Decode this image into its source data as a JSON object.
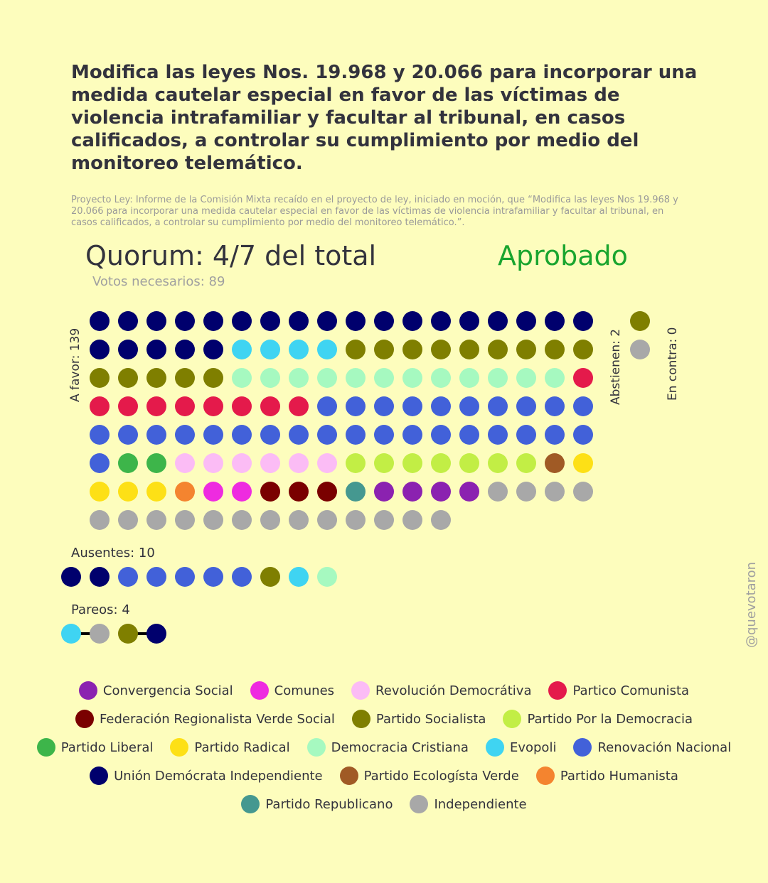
{
  "title": "Modifica las leyes Nos. 19.968 y 20.066 para incorporar una medida cautelar especial en favor de las víctimas de violencia intrafamiliar y facultar al tribunal, en casos calificados, a controlar su cumplimiento por medio del monitoreo telemático.",
  "subtitle": "Proyecto Ley: Informe de la Comisión Mixta recaído en el proyecto de ley, iniciado en moción, que “Modifica las leyes Nos 19.968 y 20.066 para incorporar una medida cautelar especial en favor de las víctimas de violencia intrafamiliar y facultar al tribunal, en casos calificados, a controlar su cumplimiento por medio del monitoreo telemático.”.",
  "quorum": "Quorum: 4/7 del total",
  "result": "Aprobado",
  "needed": "Votos necesarios: 89",
  "labels": {
    "favor": "A favor: 139",
    "abstain": "Abstienen: 2",
    "against": "En contra: 0",
    "absent": "Ausentes: 10",
    "pairs": "Pareos: 4"
  },
  "watermark": "@quevotaron",
  "parties": {
    "CS": {
      "name": "Convergencia Social",
      "color": "#8b22b0"
    },
    "COM": {
      "name": "Comunes",
      "color": "#ee2be0"
    },
    "RD": {
      "name": "Revolución Democrátiva",
      "color": "#fbbcf5"
    },
    "PC": {
      "name": "Partico Comunista",
      "color": "#e41a4b"
    },
    "FRVS": {
      "name": "Federación Regionalista Verde Social",
      "color": "#7a0000"
    },
    "PS": {
      "name": "Partido Socialista",
      "color": "#7f7f00"
    },
    "PPD": {
      "name": "Partido Por la Democracia",
      "color": "#c2ee45"
    },
    "PL": {
      "name": "Partido Liberal",
      "color": "#3db54a"
    },
    "PR": {
      "name": "Partido Radical",
      "color": "#fde016"
    },
    "DC": {
      "name": "Democracia Cristiana",
      "color": "#a6f9c0"
    },
    "EVO": {
      "name": "Evopoli",
      "color": "#3fd4f2"
    },
    "RN": {
      "name": "Renovación Nacional",
      "color": "#4261d9"
    },
    "UDI": {
      "name": "Unión Demócrata Independiente",
      "color": "#00006d"
    },
    "PEV": {
      "name": "Partido Ecologísta Verde",
      "color": "#a05a25"
    },
    "PH": {
      "name": "Partido Humanista",
      "color": "#f4842f"
    },
    "REP": {
      "name": "Partido Republicano",
      "color": "#459890"
    },
    "IND": {
      "name": "Independiente",
      "color": "#a8a8a8"
    }
  },
  "legend_rows": [
    [
      "CS",
      "COM",
      "RD",
      "PC"
    ],
    [
      "FRVS",
      "PS",
      "PPD"
    ],
    [
      "PL",
      "PR",
      "DC",
      "EVO",
      "RN"
    ],
    [
      "UDI",
      "PEV",
      "PH"
    ],
    [
      "REP",
      "IND"
    ]
  ],
  "chart_data": {
    "type": "waffle",
    "favor": {
      "total": 139,
      "groups": [
        {
          "party": "UDI",
          "count": 23
        },
        {
          "party": "EVO",
          "count": 4
        },
        {
          "party": "PS",
          "count": 14
        },
        {
          "party": "DC",
          "count": 12
        },
        {
          "party": "PC",
          "count": 9
        },
        {
          "party": "RN",
          "count": 29
        },
        {
          "party": "PL",
          "count": 2
        },
        {
          "party": "RD",
          "count": 6
        },
        {
          "party": "PPD",
          "count": 7
        },
        {
          "party": "PEV",
          "count": 1
        },
        {
          "party": "PR",
          "count": 4
        },
        {
          "party": "PH",
          "count": 1
        },
        {
          "party": "COM",
          "count": 2
        },
        {
          "party": "FRVS",
          "count": 3
        },
        {
          "party": "REP",
          "count": 1
        },
        {
          "party": "CS",
          "count": 4
        },
        {
          "party": "IND",
          "count": 17
        }
      ]
    },
    "abstain": {
      "total": 2,
      "groups": [
        {
          "party": "PS",
          "count": 1
        },
        {
          "party": "IND",
          "count": 1
        }
      ]
    },
    "against": {
      "total": 0,
      "groups": []
    },
    "absent": {
      "total": 10,
      "groups": [
        {
          "party": "UDI",
          "count": 2
        },
        {
          "party": "RN",
          "count": 5
        },
        {
          "party": "PS",
          "count": 1
        },
        {
          "party": "EVO",
          "count": 1
        },
        {
          "party": "DC",
          "count": 1
        }
      ]
    },
    "pairs": {
      "total": 4,
      "groups": [
        [
          "EVO",
          "IND"
        ],
        [
          "PS",
          "UDI"
        ]
      ]
    }
  }
}
